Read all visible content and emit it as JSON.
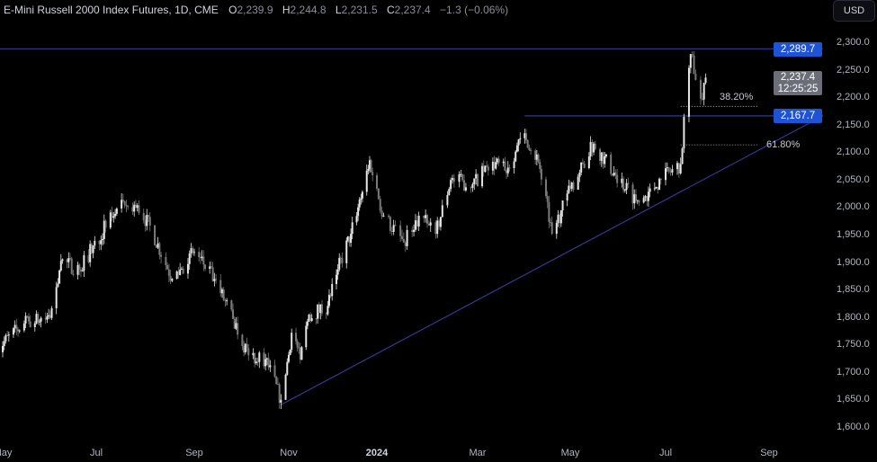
{
  "header": {
    "title": "E-Mini Russell 2000 Index Futures, 1D, CME",
    "open_label": "O",
    "open": "2,239.9",
    "high_label": "H",
    "high": "2,244.8",
    "low_label": "L",
    "low": "2,231.5",
    "close_label": "C",
    "close": "2,237.4",
    "change": "−1.3 (−0.06%)"
  },
  "currency_button": "USD",
  "colors": {
    "up": "#e6e6e6",
    "down": "#7a7a7a",
    "lines": "#2f3b8c",
    "tag_blue": "#1f53d6",
    "tag_gray": "#6b6e78"
  },
  "chart_data": {
    "type": "candlestick",
    "title": "E-Mini Russell 2000 Index Futures, 1D, CME",
    "ylim": [
      1580,
      2320
    ],
    "y_ticks": [
      "2,300.0",
      "2,250.0",
      "2,200.0",
      "2,150.0",
      "2,100.0",
      "2,050.0",
      "2,000.0",
      "1,950.0",
      "1,900.0",
      "1,850.0",
      "1,800.0",
      "1,750.0",
      "1,700.0",
      "1,650.0",
      "1,600.0"
    ],
    "x_ticks": [
      {
        "label": "May",
        "date": "2023-05-01"
      },
      {
        "label": "Jul",
        "date": "2023-07-01"
      },
      {
        "label": "Sep",
        "date": "2023-09-01"
      },
      {
        "label": "Nov",
        "date": "2023-11-01"
      },
      {
        "label": "2024",
        "date": "2024-01-01"
      },
      {
        "label": "Mar",
        "date": "2024-03-01"
      },
      {
        "label": "May",
        "date": "2024-05-01"
      },
      {
        "label": "Jul",
        "date": "2024-07-01"
      },
      {
        "label": "Sep",
        "date": "2024-09-01"
      }
    ],
    "approx_close_path": [
      [
        "2023-04-26",
        1741
      ],
      [
        "2023-05-15",
        1790
      ],
      [
        "2023-06-01",
        1800
      ],
      [
        "2023-06-08",
        1904
      ],
      [
        "2023-06-20",
        1888
      ],
      [
        "2023-07-14",
        1999
      ],
      [
        "2023-07-27",
        2005
      ],
      [
        "2023-08-05",
        1960
      ],
      [
        "2023-08-18",
        1871
      ],
      [
        "2023-09-01",
        1920
      ],
      [
        "2023-09-14",
        1871
      ],
      [
        "2023-09-26",
        1798
      ],
      [
        "2023-10-06",
        1732
      ],
      [
        "2023-10-17",
        1725
      ],
      [
        "2023-10-27",
        1651
      ],
      [
        "2023-11-03",
        1773
      ],
      [
        "2023-11-09",
        1724
      ],
      [
        "2023-11-15",
        1806
      ],
      [
        "2023-11-28",
        1822
      ],
      [
        "2023-12-05",
        1888
      ],
      [
        "2023-12-14",
        1953
      ],
      [
        "2023-12-27",
        2087
      ],
      [
        "2024-01-05",
        1986
      ],
      [
        "2024-01-17",
        1937
      ],
      [
        "2024-01-26",
        1986
      ],
      [
        "2024-02-05",
        1953
      ],
      [
        "2024-02-14",
        2051
      ],
      [
        "2024-02-27",
        2043
      ],
      [
        "2024-03-11",
        2084
      ],
      [
        "2024-03-19",
        2068
      ],
      [
        "2024-04-01",
        2136
      ],
      [
        "2024-04-10",
        2084
      ],
      [
        "2024-04-19",
        1953
      ],
      [
        "2024-05-01",
        2035
      ],
      [
        "2024-05-16",
        2117
      ],
      [
        "2024-05-30",
        2060
      ],
      [
        "2024-06-14",
        2010
      ],
      [
        "2024-06-28",
        2051
      ],
      [
        "2024-07-10",
        2080
      ],
      [
        "2024-07-12",
        2166
      ],
      [
        "2024-07-16",
        2280
      ],
      [
        "2024-07-22",
        2199
      ],
      [
        "2024-07-25",
        2237.4
      ]
    ],
    "last_price": "2,237.4",
    "countdown": "12:25:25",
    "horizontal_levels": [
      {
        "price": 2289.7,
        "label": "2,289.7",
        "from": "2023-04-26"
      },
      {
        "price": 2167.7,
        "label": "2,167.7",
        "from": "2024-04-01"
      }
    ],
    "trendline": {
      "from": [
        "2023-10-27",
        1642
      ],
      "to": [
        "2024-09-12",
        2167.7
      ]
    },
    "fib_levels": [
      {
        "label": "38.20%",
        "price": 2185
      },
      {
        "label": "61.80%",
        "price": 2115
      }
    ],
    "fib_range": {
      "from": "2024-07-10",
      "to": "2024-08-25"
    }
  }
}
